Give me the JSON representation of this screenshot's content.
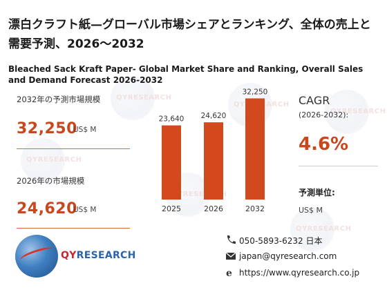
{
  "title_jp": "漂白クラフト紙—グローバル市場シェアとランキング、全体の売上と需要予測、2026～2032",
  "title_en": "Bleached Sack Kraft Paper- Global Market Share and Ranking, Overall Sales and Demand Forecast 2026-2032",
  "left_panel": {
    "label_2032": "2032年の予測市場規模",
    "value_2032": "32,250",
    "unit_2032": "US$ M",
    "label_2026": "2026年の市場規模",
    "value_2026": "24,620",
    "unit_2026": "US$ M"
  },
  "right_panel": {
    "cagr_label": "CAGR",
    "cagr_period": "(2026-2032):",
    "cagr_value": "4.6%",
    "forecast_unit_label": "予測単位:",
    "forecast_unit": "US$ M"
  },
  "chart_data": {
    "type": "bar",
    "categories": [
      "2025",
      "2026",
      "2032"
    ],
    "values": [
      23640,
      24620,
      32250
    ],
    "data_labels": [
      "23,640",
      "24,620",
      "32,250"
    ],
    "bar_color": "#d2491e",
    "ylim": [
      0,
      35000
    ],
    "grid": false,
    "legend": "none"
  },
  "contact": {
    "phone": "050-5893-6232 日本",
    "email": "japan@qyresearch.com",
    "web": "https://www.qyresearch.co.jp"
  },
  "logo": {
    "brand_part1": "QY",
    "brand_part2": "RESEARCH"
  },
  "watermark_text": "QYRESEARCH",
  "colors": {
    "accent": "#c8471c",
    "bar": "#d2491e",
    "logo_red": "#c8252c",
    "logo_blue": "#2d63a8"
  }
}
